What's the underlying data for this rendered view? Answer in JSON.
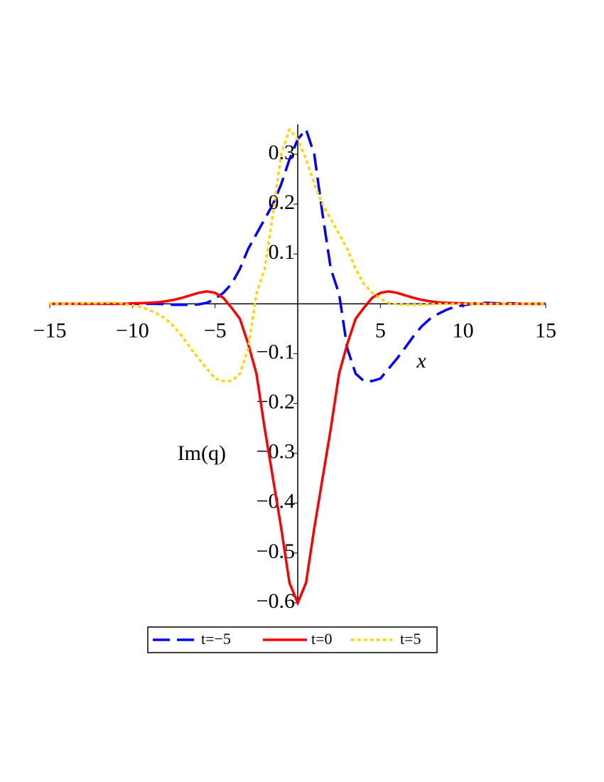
{
  "chart_data": {
    "type": "line",
    "x_label": "x",
    "y_label": "Im(q)",
    "x": [
      -15,
      -14.5,
      -14,
      -13.5,
      -13,
      -12.5,
      -12,
      -11.5,
      -11,
      -10.5,
      -10,
      -9.5,
      -9,
      -8.5,
      -8,
      -7.5,
      -7,
      -6.5,
      -6,
      -5.5,
      -5,
      -4.5,
      -4,
      -3.5,
      -3,
      -2.5,
      -2,
      -1.5,
      -1,
      -0.5,
      0,
      0.5,
      1,
      1.5,
      2,
      2.5,
      3,
      3.5,
      4,
      4.5,
      5,
      5.5,
      6,
      6.5,
      7,
      7.5,
      8,
      8.5,
      9,
      9.5,
      10,
      10.5,
      11,
      11.5,
      12,
      12.5,
      13,
      13.5,
      14,
      14.5,
      15
    ],
    "series": [
      {
        "name": "t=−5",
        "color": "#0000ff",
        "dash": "dash",
        "values": [
          0,
          0,
          0,
          0,
          0,
          0,
          0,
          0,
          0,
          0,
          0,
          0,
          0,
          0,
          -0.001,
          -0.002,
          -0.002,
          -0.002,
          -0.001,
          0.002,
          0.01,
          0.022,
          0.04,
          0.07,
          0.11,
          0.14,
          0.17,
          0.2,
          0.24,
          0.29,
          0.33,
          0.35,
          0.3,
          0.18,
          0.07,
          0.02,
          -0.09,
          -0.14,
          -0.155,
          -0.155,
          -0.15,
          -0.13,
          -0.11,
          -0.088,
          -0.065,
          -0.045,
          -0.03,
          -0.02,
          -0.012,
          -0.006,
          -0.003,
          0,
          0.002,
          0.002,
          0.001,
          0.001,
          0.001,
          0,
          0,
          0,
          0
        ]
      },
      {
        "name": "t=0",
        "color": "#ff0000",
        "dash": "solid",
        "values": [
          0,
          0,
          0,
          0,
          0,
          0,
          0,
          0,
          0,
          0,
          0.001,
          0.0015,
          0.002,
          0.003,
          0.005,
          0.008,
          0.012,
          0.017,
          0.022,
          0.025,
          0.022,
          0.012,
          -0.008,
          -0.03,
          -0.08,
          -0.14,
          -0.25,
          -0.35,
          -0.45,
          -0.56,
          -0.6,
          -0.56,
          -0.45,
          -0.35,
          -0.25,
          -0.14,
          -0.08,
          -0.03,
          -0.008,
          0.012,
          0.022,
          0.025,
          0.022,
          0.017,
          0.012,
          0.008,
          0.005,
          0.003,
          0.002,
          0.0015,
          0.001,
          0,
          0,
          0,
          0,
          0,
          0,
          0,
          0,
          0,
          0
        ]
      },
      {
        "name": "t=5",
        "color": "#ffd700",
        "dash": "dot",
        "values": [
          0,
          0,
          0,
          0,
          0.001,
          0.001,
          0.001,
          0.002,
          0.002,
          0,
          -0.003,
          -0.006,
          -0.012,
          -0.02,
          -0.03,
          -0.045,
          -0.065,
          -0.088,
          -0.11,
          -0.13,
          -0.15,
          -0.155,
          -0.155,
          -0.14,
          -0.09,
          0.02,
          0.07,
          0.18,
          0.3,
          0.35,
          0.33,
          0.29,
          0.24,
          0.2,
          0.17,
          0.14,
          0.11,
          0.07,
          0.04,
          0.022,
          0.01,
          0.002,
          -0.001,
          -0.002,
          -0.002,
          -0.002,
          -0.001,
          0,
          0,
          0,
          0,
          0,
          0,
          0,
          0,
          0,
          0,
          0,
          0,
          0,
          0
        ]
      }
    ],
    "xlim": [
      -15,
      15
    ],
    "ylim": [
      -0.6,
      0.36
    ],
    "xticks": [
      {
        "value": -15,
        "label": "−15"
      },
      {
        "value": -10,
        "label": "−10"
      },
      {
        "value": -5,
        "label": "−5"
      },
      5,
      10,
      15
    ],
    "yticks": [
      0.3,
      0.2,
      0.1,
      {
        "value": -0.1,
        "label": "−0.1"
      },
      {
        "value": -0.2,
        "label": "−0.2"
      },
      {
        "value": -0.3,
        "label": "−0.3"
      },
      {
        "value": -0.4,
        "label": "−0.4"
      },
      {
        "value": -0.5,
        "label": "−0.5"
      },
      {
        "value": -0.6,
        "label": "−0.6"
      }
    ],
    "grid": false,
    "legend": "bottom"
  }
}
